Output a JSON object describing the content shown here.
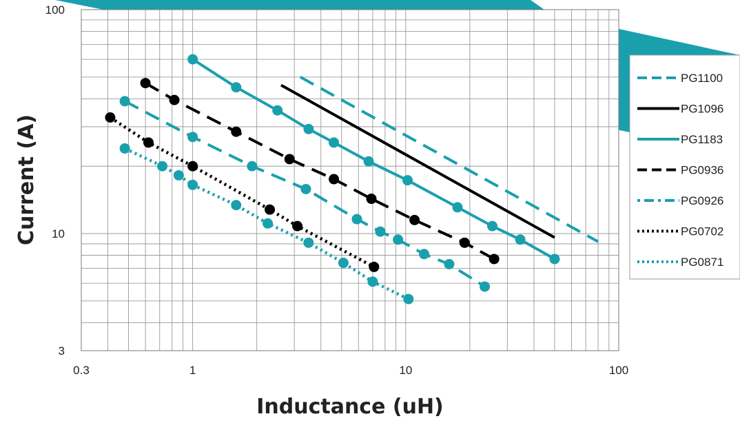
{
  "chart_data": {
    "type": "line",
    "title": "",
    "xlabel": "Inductance (uH)",
    "ylabel": "Current (A)",
    "x_scale": "log",
    "y_scale": "log",
    "xlim": [
      0.3,
      100
    ],
    "ylim": [
      3,
      100
    ],
    "x_ticks": [
      "0.3",
      "1",
      "10",
      "100"
    ],
    "y_ticks": [
      "3",
      "10",
      "100"
    ],
    "grid": true,
    "legend_position": "right",
    "series": [
      {
        "name": "PG1100",
        "color": "#1aa0ad",
        "dash": "dashed",
        "markers": false,
        "x": [
          3.2,
          80
        ],
        "y": [
          50,
          9.2
        ]
      },
      {
        "name": "PG1096",
        "color": "#000000",
        "dash": "solid",
        "markers": false,
        "x": [
          2.6,
          50
        ],
        "y": [
          46,
          9.6
        ]
      },
      {
        "name": "PG1183",
        "color": "#1aa0ad",
        "dash": "solid",
        "markers": true,
        "x": [
          1.0,
          1.6,
          2.5,
          3.5,
          4.6,
          6.7,
          10.2,
          17.5,
          25.5,
          34.5,
          50
        ],
        "y": [
          60,
          45,
          35.5,
          29.3,
          25.5,
          21,
          17.3,
          13.1,
          10.8,
          9.4,
          7.7
        ]
      },
      {
        "name": "PG0936",
        "color": "#000000",
        "dash": "dashed",
        "markers": true,
        "x": [
          0.6,
          0.82,
          1.6,
          2.85,
          4.6,
          6.9,
          11,
          18.9,
          26
        ],
        "y": [
          47,
          39.5,
          28.5,
          21.5,
          17.5,
          14.3,
          11.5,
          9.1,
          7.7
        ]
      },
      {
        "name": "PG0926",
        "color": "#1aa0ad",
        "dash": "dashdot",
        "markers": true,
        "x": [
          0.48,
          1.0,
          1.9,
          3.4,
          5.9,
          7.6,
          9.2,
          12.2,
          16,
          23.5
        ],
        "y": [
          39,
          27,
          20,
          15.8,
          11.6,
          10.2,
          9.4,
          8.1,
          7.3,
          5.8
        ]
      },
      {
        "name": "PG0702",
        "color": "#000000",
        "dash": "dotted",
        "markers": true,
        "x": [
          0.41,
          0.62,
          1.0,
          2.3,
          3.1,
          7.1
        ],
        "y": [
          33,
          25.5,
          20,
          12.8,
          10.8,
          7.1
        ]
      },
      {
        "name": "PG0871",
        "color": "#1aa0ad",
        "dash": "dotted",
        "markers": true,
        "x": [
          0.48,
          0.72,
          0.86,
          1.0,
          1.6,
          2.25,
          3.5,
          5.1,
          7.0,
          10.3
        ],
        "y": [
          24,
          20,
          18.2,
          16.5,
          13.4,
          11.1,
          9.1,
          7.4,
          6.1,
          5.1
        ]
      }
    ]
  }
}
